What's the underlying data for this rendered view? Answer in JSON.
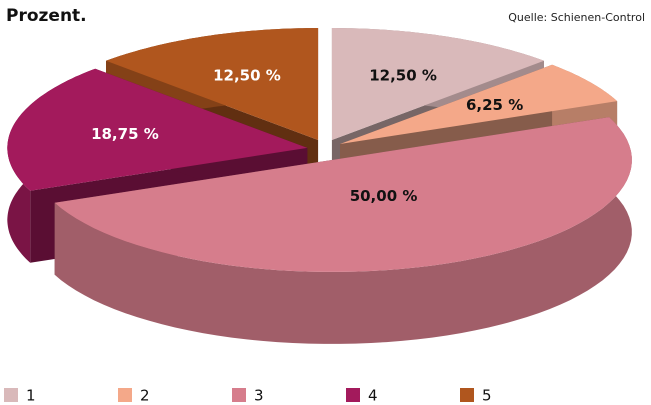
{
  "chart_data": {
    "type": "pie",
    "title": "Prozent.",
    "source": "Quelle: Schienen-Control",
    "categories": [
      "1",
      "2",
      "3",
      "4",
      "5"
    ],
    "values": [
      12.5,
      6.25,
      50,
      18.75,
      12.5
    ],
    "value_labels": [
      "12,50 %",
      "6,25 %",
      "50,00 %",
      "18,75 %",
      "12,50 %"
    ],
    "colors": [
      "#d9b9ba",
      "#f4a889",
      "#d67d8c",
      "#a31a5c",
      "#b0561e"
    ],
    "legend": "bottom"
  }
}
